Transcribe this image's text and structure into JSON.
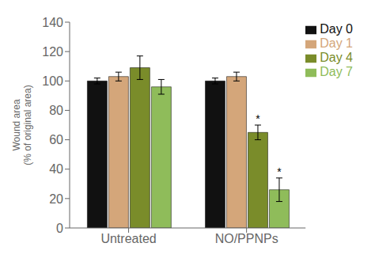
{
  "chart_data": {
    "type": "bar",
    "categories": [
      "Untreated",
      "NO/PPNPs"
    ],
    "series": [
      {
        "name": "Day 0",
        "color": "#111111",
        "values": [
          100,
          100
        ],
        "errors": [
          2,
          2
        ]
      },
      {
        "name": "Day 1",
        "color": "#d4a67a",
        "values": [
          103,
          103
        ],
        "errors": [
          3,
          3
        ]
      },
      {
        "name": "Day 4",
        "color": "#7a8c2a",
        "values": [
          109,
          65
        ],
        "errors": [
          8,
          5
        ]
      },
      {
        "name": "Day 7",
        "color": "#8fbc5a",
        "values": [
          96,
          26
        ],
        "errors": [
          5,
          8
        ]
      }
    ],
    "ylabel": "Wound area\n(% of original area)",
    "ylim": [
      0,
      140
    ],
    "yticks": [
      0,
      20,
      40,
      60,
      80,
      100,
      120,
      140
    ],
    "grid": false,
    "legend": "right",
    "annotations": [
      {
        "text": "*",
        "category": "NO/PPNPs",
        "series": "Day 4"
      },
      {
        "text": "*",
        "category": "NO/PPNPs",
        "series": "Day 7"
      }
    ]
  }
}
